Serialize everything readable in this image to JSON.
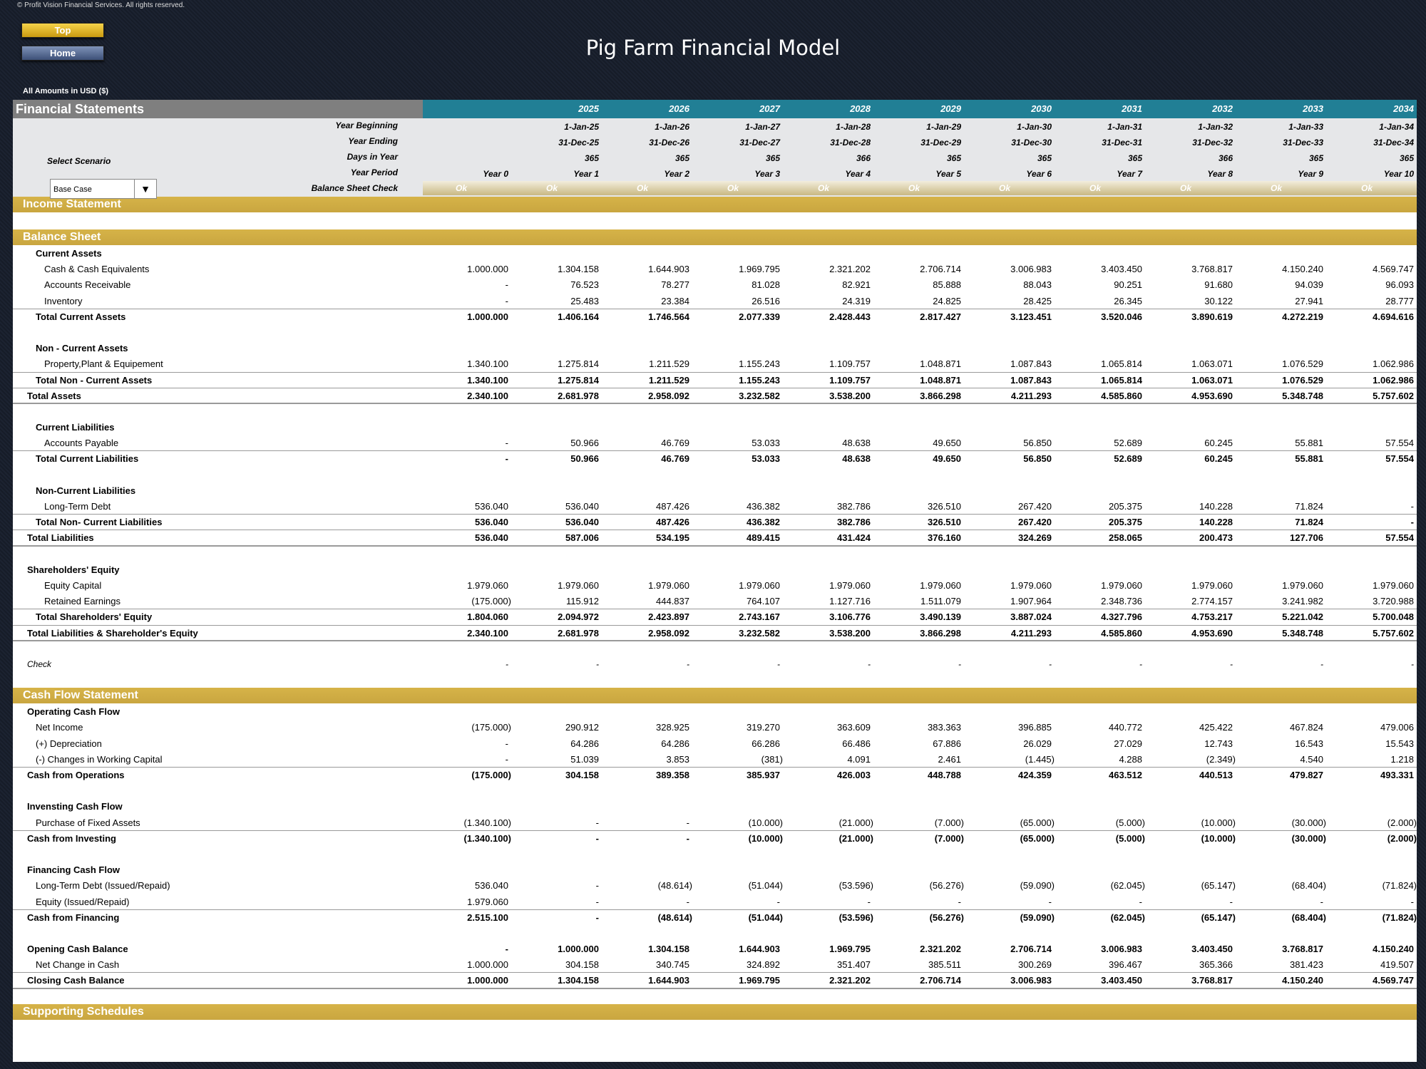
{
  "copyright": "© Profit Vision Financial Services. All rights reserved.",
  "buttons": {
    "top": "Top",
    "home": "Home"
  },
  "title": "Pig Farm Financial Model",
  "amounts_label": "All Amounts in  USD ($)",
  "header": {
    "label": "Financial Statements",
    "years": [
      "2025",
      "2026",
      "2027",
      "2028",
      "2029",
      "2030",
      "2031",
      "2032",
      "2033",
      "2034"
    ]
  },
  "controls": {
    "year_beginning_label": "Year Beginning",
    "year_ending_label": "Year Ending",
    "days_label": "Days in Year",
    "period_label": "Year Period",
    "check_label": "Balance Sheet Check",
    "select_scenario_label": "Select Scenario",
    "scenario_value": "Base Case",
    "year_beginning": [
      "1-Jan-25",
      "1-Jan-26",
      "1-Jan-27",
      "1-Jan-28",
      "1-Jan-29",
      "1-Jan-30",
      "1-Jan-31",
      "1-Jan-32",
      "1-Jan-33",
      "1-Jan-34"
    ],
    "year_ending": [
      "31-Dec-25",
      "31-Dec-26",
      "31-Dec-27",
      "31-Dec-28",
      "31-Dec-29",
      "31-Dec-30",
      "31-Dec-31",
      "31-Dec-32",
      "31-Dec-33",
      "31-Dec-34"
    ],
    "days": [
      "365",
      "365",
      "365",
      "366",
      "365",
      "365",
      "365",
      "366",
      "365",
      "365"
    ],
    "periods": [
      "Year 0",
      "Year 1",
      "Year 2",
      "Year 3",
      "Year 4",
      "Year 5",
      "Year 6",
      "Year 7",
      "Year 8",
      "Year 9",
      "Year 10"
    ],
    "checks": [
      "Ok",
      "Ok",
      "Ok",
      "Ok",
      "Ok",
      "Ok",
      "Ok",
      "Ok",
      "Ok",
      "Ok",
      "Ok"
    ]
  },
  "sections": {
    "income": "Income Statement",
    "balance": "Balance Sheet",
    "cashflow": "Cash Flow Statement",
    "supporting": "Supporting Schedules"
  },
  "balance_rows": [
    {
      "label": "Current Assets",
      "indent": 1,
      "bold": true,
      "values": []
    },
    {
      "label": "Cash & Cash Equivalents",
      "indent": 2,
      "values": [
        "1.000.000",
        "1.304.158",
        "1.644.903",
        "1.969.795",
        "2.321.202",
        "2.706.714",
        "3.006.983",
        "3.403.450",
        "3.768.817",
        "4.150.240",
        "4.569.747"
      ]
    },
    {
      "label": "Accounts Receivable",
      "indent": 2,
      "values": [
        "-",
        "76.523",
        "78.277",
        "81.028",
        "82.921",
        "85.888",
        "88.043",
        "90.251",
        "91.680",
        "94.039",
        "96.093"
      ]
    },
    {
      "label": "Inventory",
      "indent": 2,
      "values": [
        "-",
        "25.483",
        "23.384",
        "26.516",
        "24.319",
        "24.825",
        "28.425",
        "26.345",
        "30.122",
        "27.941",
        "28.777"
      ]
    },
    {
      "label": "Total Current Assets",
      "indent": 1,
      "bold": true,
      "line": true,
      "values": [
        "1.000.000",
        "1.406.164",
        "1.746.564",
        "2.077.339",
        "2.428.443",
        "2.817.427",
        "3.123.451",
        "3.520.046",
        "3.890.619",
        "4.272.219",
        "4.694.616"
      ]
    },
    {
      "spacer": true
    },
    {
      "label": "Non - Current Assets",
      "indent": 1,
      "bold": true,
      "values": []
    },
    {
      "label": "Property,Plant & Equipement",
      "indent": 2,
      "values": [
        "1.340.100",
        "1.275.814",
        "1.211.529",
        "1.155.243",
        "1.109.757",
        "1.048.871",
        "1.087.843",
        "1.065.814",
        "1.063.071",
        "1.076.529",
        "1.062.986"
      ]
    },
    {
      "label": "Total Non - Current Assets",
      "indent": 1,
      "bold": true,
      "line": true,
      "values": [
        "1.340.100",
        "1.275.814",
        "1.211.529",
        "1.155.243",
        "1.109.757",
        "1.048.871",
        "1.087.843",
        "1.065.814",
        "1.063.071",
        "1.076.529",
        "1.062.986"
      ]
    },
    {
      "label": "Total Assets",
      "indent": 0,
      "bold": true,
      "line": true,
      "dbl": true,
      "values": [
        "2.340.100",
        "2.681.978",
        "2.958.092",
        "3.232.582",
        "3.538.200",
        "3.866.298",
        "4.211.293",
        "4.585.860",
        "4.953.690",
        "5.348.748",
        "5.757.602"
      ]
    },
    {
      "spacer": true
    },
    {
      "label": "Current Liabilities",
      "indent": 1,
      "bold": true,
      "values": []
    },
    {
      "label": "Accounts Payable",
      "indent": 2,
      "values": [
        "-",
        "50.966",
        "46.769",
        "53.033",
        "48.638",
        "49.650",
        "56.850",
        "52.689",
        "60.245",
        "55.881",
        "57.554"
      ]
    },
    {
      "label": "Total Current Liabilities",
      "indent": 1,
      "bold": true,
      "line": true,
      "values": [
        "-",
        "50.966",
        "46.769",
        "53.033",
        "48.638",
        "49.650",
        "56.850",
        "52.689",
        "60.245",
        "55.881",
        "57.554"
      ]
    },
    {
      "spacer": true
    },
    {
      "label": "Non-Current Liabilities",
      "indent": 1,
      "bold": true,
      "values": []
    },
    {
      "label": "Long-Term Debt",
      "indent": 2,
      "values": [
        "536.040",
        "536.040",
        "487.426",
        "436.382",
        "382.786",
        "326.510",
        "267.420",
        "205.375",
        "140.228",
        "71.824",
        "-"
      ]
    },
    {
      "label": "Total Non- Current Liabilities",
      "indent": 1,
      "bold": true,
      "line": true,
      "values": [
        "536.040",
        "536.040",
        "487.426",
        "436.382",
        "382.786",
        "326.510",
        "267.420",
        "205.375",
        "140.228",
        "71.824",
        "-"
      ]
    },
    {
      "label": "Total Liabilities",
      "indent": 0,
      "bold": true,
      "line": true,
      "dbl": true,
      "values": [
        "536.040",
        "587.006",
        "534.195",
        "489.415",
        "431.424",
        "376.160",
        "324.269",
        "258.065",
        "200.473",
        "127.706",
        "57.554"
      ]
    },
    {
      "spacer": true
    },
    {
      "label": "Shareholders' Equity",
      "indent": 0,
      "bold": true,
      "values": []
    },
    {
      "label": "Equity Capital",
      "indent": 2,
      "values": [
        "1.979.060",
        "1.979.060",
        "1.979.060",
        "1.979.060",
        "1.979.060",
        "1.979.060",
        "1.979.060",
        "1.979.060",
        "1.979.060",
        "1.979.060",
        "1.979.060"
      ]
    },
    {
      "label": "Retained Earnings",
      "indent": 2,
      "values": [
        "(175.000)",
        "115.912",
        "444.837",
        "764.107",
        "1.127.716",
        "1.511.079",
        "1.907.964",
        "2.348.736",
        "2.774.157",
        "3.241.982",
        "3.720.988"
      ]
    },
    {
      "label": "Total Shareholders' Equity",
      "indent": 1,
      "bold": true,
      "line": true,
      "values": [
        "1.804.060",
        "2.094.972",
        "2.423.897",
        "2.743.167",
        "3.106.776",
        "3.490.139",
        "3.887.024",
        "4.327.796",
        "4.753.217",
        "5.221.042",
        "5.700.048"
      ]
    },
    {
      "label": "Total Liabilities & Shareholder's Equity",
      "indent": 0,
      "bold": true,
      "line": true,
      "dbl": true,
      "values": [
        "2.340.100",
        "2.681.978",
        "2.958.092",
        "3.232.582",
        "3.538.200",
        "3.866.298",
        "4.211.293",
        "4.585.860",
        "4.953.690",
        "5.348.748",
        "5.757.602"
      ]
    },
    {
      "spacer": true
    },
    {
      "label": "Check",
      "indent": 0,
      "italic": true,
      "values": [
        "-",
        "-",
        "-",
        "-",
        "-",
        "-",
        "-",
        "-",
        "-",
        "-",
        "-"
      ]
    },
    {
      "spacer": true
    }
  ],
  "cashflow_rows": [
    {
      "label": "Operating Cash Flow",
      "indent": 0,
      "bold": true,
      "values": []
    },
    {
      "label": "Net Income",
      "indent": 1,
      "values": [
        "(175.000)",
        "290.912",
        "328.925",
        "319.270",
        "363.609",
        "383.363",
        "396.885",
        "440.772",
        "425.422",
        "467.824",
        "479.006"
      ]
    },
    {
      "label": "(+) Depreciation",
      "indent": 1,
      "values": [
        "-",
        "64.286",
        "64.286",
        "66.286",
        "66.486",
        "67.886",
        "26.029",
        "27.029",
        "12.743",
        "16.543",
        "15.543"
      ]
    },
    {
      "label": "(-) Changes in Working Capital",
      "indent": 1,
      "values": [
        "-",
        "51.039",
        "3.853",
        "(381)",
        "4.091",
        "2.461",
        "(1.445)",
        "4.288",
        "(2.349)",
        "4.540",
        "1.218"
      ]
    },
    {
      "label": "Cash from Operations",
      "indent": 0,
      "bold": true,
      "line": true,
      "values": [
        "(175.000)",
        "304.158",
        "389.358",
        "385.937",
        "426.003",
        "448.788",
        "424.359",
        "463.512",
        "440.513",
        "479.827",
        "493.331"
      ]
    },
    {
      "spacer": true
    },
    {
      "label": "Invensting Cash Flow",
      "indent": 0,
      "bold": true,
      "values": []
    },
    {
      "label": "Purchase of Fixed Assets",
      "indent": 1,
      "values": [
        "(1.340.100)",
        "-",
        "-",
        "(10.000)",
        "(21.000)",
        "(7.000)",
        "(65.000)",
        "(5.000)",
        "(10.000)",
        "(30.000)",
        "(2.000)"
      ]
    },
    {
      "label": "Cash from Investing",
      "indent": 0,
      "bold": true,
      "line": true,
      "values": [
        "(1.340.100)",
        "-",
        "-",
        "(10.000)",
        "(21.000)",
        "(7.000)",
        "(65.000)",
        "(5.000)",
        "(10.000)",
        "(30.000)",
        "(2.000)"
      ]
    },
    {
      "spacer": true
    },
    {
      "label": "Financing Cash Flow",
      "indent": 0,
      "bold": true,
      "values": []
    },
    {
      "label": "Long-Term Debt (Issued/Repaid)",
      "indent": 1,
      "values": [
        "536.040",
        "-",
        "(48.614)",
        "(51.044)",
        "(53.596)",
        "(56.276)",
        "(59.090)",
        "(62.045)",
        "(65.147)",
        "(68.404)",
        "(71.824)"
      ]
    },
    {
      "label": "Equity (Issued/Repaid)",
      "indent": 1,
      "values": [
        "1.979.060",
        "-",
        "-",
        "-",
        "-",
        "-",
        "-",
        "-",
        "-",
        "-",
        "-"
      ]
    },
    {
      "label": "Cash from Financing",
      "indent": 0,
      "bold": true,
      "line": true,
      "values": [
        "2.515.100",
        "-",
        "(48.614)",
        "(51.044)",
        "(53.596)",
        "(56.276)",
        "(59.090)",
        "(62.045)",
        "(65.147)",
        "(68.404)",
        "(71.824)"
      ]
    },
    {
      "spacer": true
    },
    {
      "label": "Opening Cash Balance",
      "indent": 0,
      "bold": true,
      "values": [
        "-",
        "1.000.000",
        "1.304.158",
        "1.644.903",
        "1.969.795",
        "2.321.202",
        "2.706.714",
        "3.006.983",
        "3.403.450",
        "3.768.817",
        "4.150.240"
      ]
    },
    {
      "label": "Net Change in Cash",
      "indent": 1,
      "values": [
        "1.000.000",
        "304.158",
        "340.745",
        "324.892",
        "351.407",
        "385.511",
        "300.269",
        "396.467",
        "365.366",
        "381.423",
        "419.507"
      ]
    },
    {
      "label": "Closing Cash Balance",
      "indent": 0,
      "bold": true,
      "line": true,
      "dbl": true,
      "values": [
        "1.000.000",
        "1.304.158",
        "1.644.903",
        "1.969.795",
        "2.321.202",
        "2.706.714",
        "3.006.983",
        "3.403.450",
        "3.768.817",
        "4.150.240",
        "4.569.747"
      ]
    },
    {
      "spacer": true
    }
  ]
}
